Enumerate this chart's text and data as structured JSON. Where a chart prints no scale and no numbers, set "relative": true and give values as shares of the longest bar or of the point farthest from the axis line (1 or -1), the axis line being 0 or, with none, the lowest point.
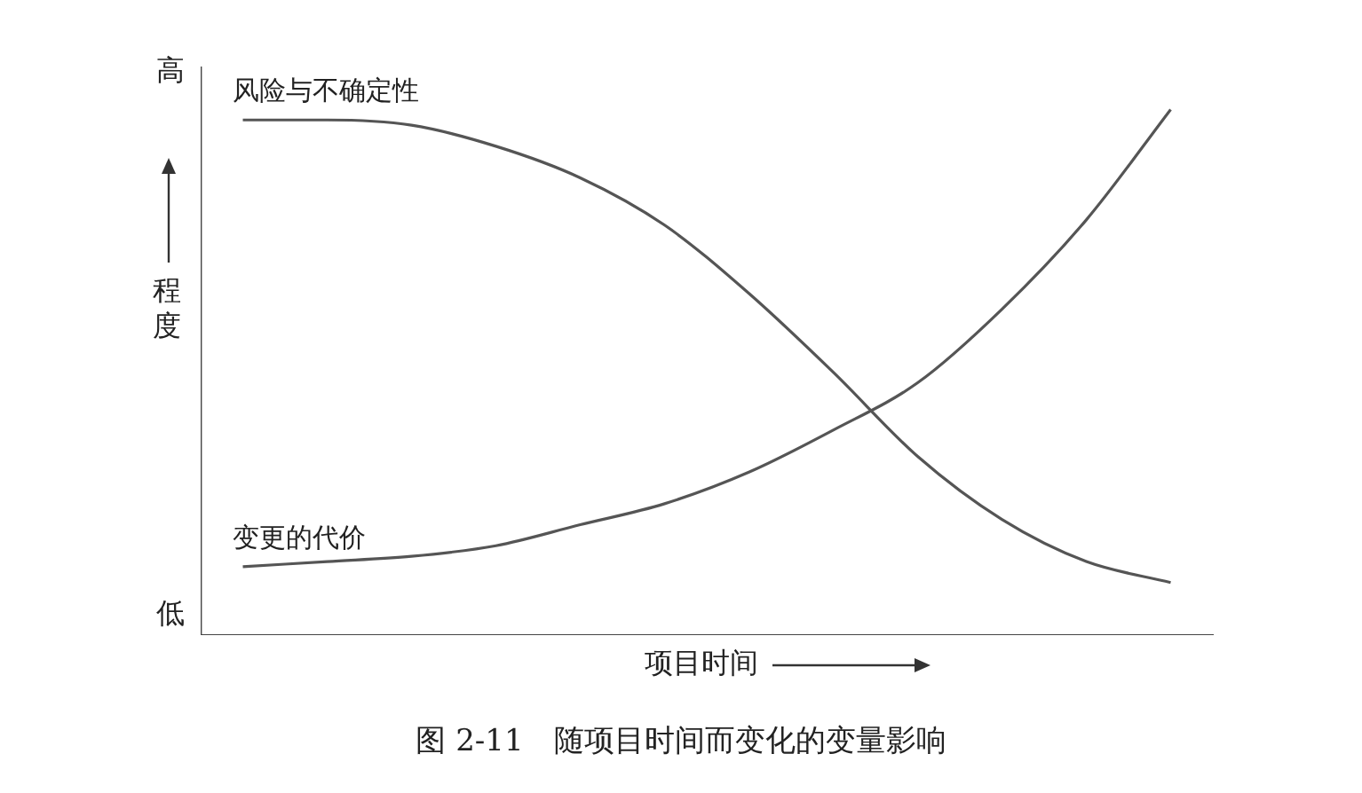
{
  "chart_data": {
    "type": "line",
    "title": "图 2-11　随项目时间而变化的变量影响",
    "xlabel": "项目时间",
    "ylabel": "程度",
    "annotations": [
      "高",
      "低"
    ],
    "relative": true,
    "grid": false,
    "legend": false,
    "marker": "none",
    "line_style": "solid",
    "categories": [
      null,
      null,
      null,
      null,
      null,
      null,
      null,
      null,
      null,
      null,
      null,
      null
    ],
    "series": [
      {
        "name": "风险与不确定性",
        "color": "#555555",
        "values": [
          0.98,
          0.98,
          0.97,
          0.93,
          0.87,
          0.78,
          0.65,
          0.5,
          0.34,
          0.22,
          0.14,
          0.1
        ]
      },
      {
        "name": "变更的代价",
        "color": "#555555",
        "values": [
          0.13,
          0.14,
          0.15,
          0.17,
          0.21,
          0.25,
          0.31,
          0.39,
          0.48,
          0.62,
          0.79,
          1.0
        ]
      }
    ]
  }
}
